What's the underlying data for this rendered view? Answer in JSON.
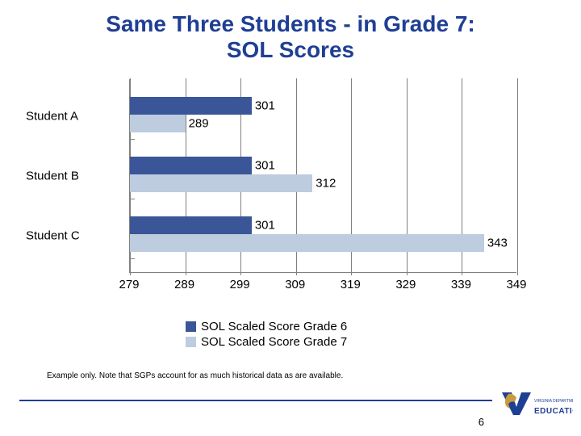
{
  "title_line1": "Same Three Students - in Grade 7:",
  "title_line2": "SOL Scores",
  "chart": {
    "type": "bar",
    "orientation": "horizontal",
    "xaxis": {
      "min": 279,
      "max": 349,
      "step": 10,
      "ticks": [
        279,
        289,
        299,
        309,
        319,
        329,
        339,
        349
      ]
    },
    "categories": [
      "Student A",
      "Student B",
      "Student C"
    ],
    "series": [
      {
        "name": "SOL Scaled Score Grade 6",
        "color": "#3a5698",
        "values": [
          301,
          301,
          301
        ]
      },
      {
        "name": "SOL Scaled Score Grade 7",
        "color": "#bdccde",
        "values": [
          289,
          312,
          343
        ]
      }
    ],
    "grid_color": "#7f7f7f",
    "label_fontsize": 15
  },
  "legend": {
    "items": [
      {
        "swatch": "#3a5698",
        "label": "SOL Scaled Score Grade 6"
      },
      {
        "swatch": "#bdccde",
        "label": "SOL Scaled Score Grade 7"
      }
    ]
  },
  "footnote": "Example only.  Note that SGPs account for as much historical data as are available.",
  "page_number": "6",
  "logo": {
    "text_top": "VIRGINIA DEPARTMENT OF",
    "text_bottom": "EDUCATION",
    "accent": "#1f3f94"
  }
}
